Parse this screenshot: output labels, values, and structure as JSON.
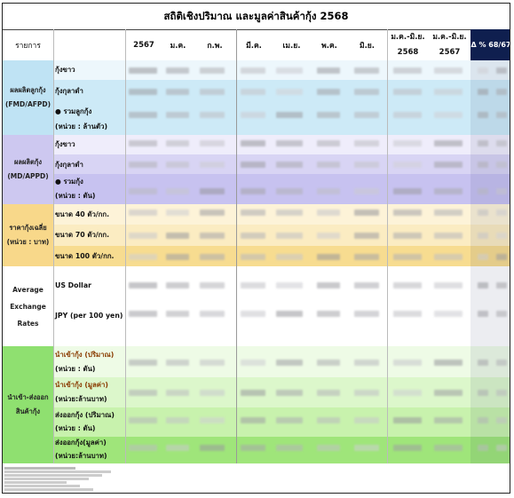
{
  "title": "สถิติเชิงปริมาณ และมูลค่าสินค้ากุ้ง 2568",
  "header": {
    "item": "รายการ",
    "y2567": "2567",
    "m1": "ม.ค.",
    "m2": "ก.พ.",
    "m3": "มี.ค.",
    "m4": "เม.ย.",
    "m5": "พ.ค.",
    "m6": "มิ.ย.",
    "ytd_a": "ม.ค.-มิ.ย.",
    "ytd_a_year": "2568",
    "ytd_b": "ม.ค.-มิ.ย.",
    "ytd_b_year": "2567",
    "change": "Δ % 68/67"
  },
  "sections": {
    "fmd": {
      "label1": "ผลผลิตลูกกุ้ง",
      "label2": "(FMD/AFPD)",
      "color": "#cfe9f5",
      "rows": [
        "กุ้งขาว",
        "กุ้งกุลาดำ",
        "● รวมลูกกุ้ง",
        "(หน่วย : ล้านตัว)"
      ]
    },
    "md": {
      "label1": "ผลผลิตกุ้ง",
      "label2": "(MD/APPD)",
      "color": "#d7d3f2",
      "rows": [
        "กุ้งขาว",
        "กุ้งกุลาดำ",
        "● รวมกุ้ง",
        "(หน่วย : ตัน)"
      ]
    },
    "price": {
      "label1": "ราคากุ้งเฉลี่ย",
      "label2": "(หน่วย : บาท)",
      "color": "#fbe8b8",
      "rows": [
        "ขนาด 40 ตัว/กก.",
        "ขนาด 70 ตัว/กก.",
        "ขนาด 100 ตัว/กก."
      ]
    },
    "fx": {
      "label1": "Average",
      "label2": "Exchange",
      "label3": "Rates",
      "rows": [
        "US Dollar",
        "JPY (per 100 yen)"
      ]
    },
    "trade": {
      "label1": "นำเข้า-ส่งออก",
      "label2": "สินค้ากุ้ง",
      "color": "#c6f0a8",
      "rows": [
        "นำเข้ากุ้ง (ปริมาณ)",
        "(หน่วย : ตัน)",
        "นำเข้ากุ้ง (มูลค่า)",
        "(หน่วย:ล้านบาท)",
        "ส่งออกกุ้ง (ปริมาณ)",
        "(หน่วย : ตัน)",
        "ส่งออกกุ้ง(มูลค่า)",
        "(หน่วย:ล้านบาท)"
      ]
    }
  }
}
